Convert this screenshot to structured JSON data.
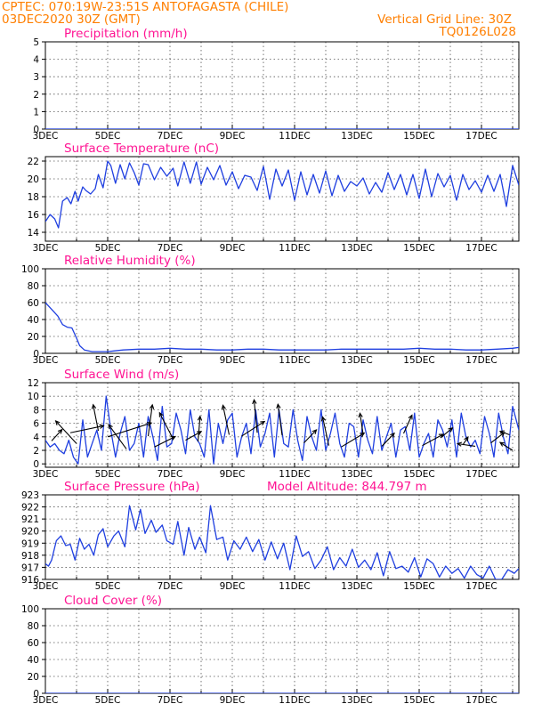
{
  "header": {
    "line1_left": "CPTEC:   070:19W-23:51S   ANTOFAGASTA (CHILE)",
    "line2_left": "03DEC2020 30Z (GMT)",
    "line2_right": "Vertical Grid Line: 30Z",
    "line3_right": "TQ0126L028"
  },
  "colors": {
    "title": "#ff1493",
    "header": "#ff7f00",
    "series": "#1f3fe0",
    "arrow": "#000000"
  },
  "chart_data": [
    {
      "type": "line",
      "title": "Precipitation (mm/h)",
      "ylim": [
        0,
        5
      ],
      "yticks": [
        0,
        1,
        2,
        3,
        4,
        5
      ],
      "xticks": [
        "3DEC",
        "5DEC",
        "7DEC",
        "9DEC",
        "11DEC",
        "13DEC",
        "15DEC",
        "17DEC"
      ],
      "x_range_days": [
        0,
        15.2
      ],
      "grid": true,
      "series": [
        {
          "x": [
            0,
            15.2
          ],
          "y": [
            0,
            0
          ]
        }
      ]
    },
    {
      "type": "line",
      "title": "Surface Temperature (nC)",
      "ylim": [
        13,
        22.5
      ],
      "yticks": [
        14,
        16,
        18,
        20,
        22
      ],
      "xticks": [
        "3DEC",
        "5DEC",
        "7DEC",
        "9DEC",
        "11DEC",
        "13DEC",
        "15DEC",
        "17DEC"
      ],
      "x_range_days": [
        0,
        15.2
      ],
      "grid": true,
      "series": [
        {
          "x": [
            0,
            0.15,
            0.3,
            0.42,
            0.55,
            0.7,
            0.82,
            0.95,
            1.05,
            1.2,
            1.3,
            1.45,
            1.6,
            1.7,
            1.85,
            2,
            2.1,
            2.25,
            2.4,
            2.55,
            2.7,
            2.85,
            3,
            3.15,
            3.3,
            3.5,
            3.7,
            3.9,
            4.1,
            4.25,
            4.45,
            4.65,
            4.85,
            5,
            5.2,
            5.4,
            5.6,
            5.8,
            6,
            6.2,
            6.4,
            6.6,
            6.8,
            7,
            7.2,
            7.4,
            7.6,
            7.8,
            8,
            8.2,
            8.4,
            8.6,
            8.8,
            9,
            9.2,
            9.4,
            9.6,
            9.8,
            10,
            10.2,
            10.4,
            10.6,
            10.8,
            11,
            11.2,
            11.4,
            11.6,
            11.8,
            12,
            12.2,
            12.4,
            12.6,
            12.8,
            13,
            13.2,
            13.4,
            13.6,
            13.8,
            14,
            14.2,
            14.4,
            14.6,
            14.8,
            15,
            15.2
          ],
          "y": [
            15.2,
            16,
            15.5,
            14.5,
            17.5,
            17.9,
            17.2,
            18.6,
            17.5,
            19.1,
            18.7,
            18.3,
            18.9,
            20.5,
            19,
            22,
            21.5,
            19.5,
            21.6,
            20,
            21.8,
            20.7,
            19.3,
            21.7,
            21.6,
            19.9,
            21.3,
            20.3,
            21.2,
            19.2,
            21.9,
            19.5,
            21.9,
            19.4,
            21.3,
            19.9,
            21.5,
            19.3,
            20.8,
            18.9,
            20.4,
            20.2,
            18.7,
            21.4,
            17.7,
            21.1,
            19.2,
            21,
            17.6,
            20.8,
            18.2,
            20.5,
            18.4,
            20.9,
            18.1,
            20.4,
            18.6,
            19.7,
            19.2,
            20.1,
            18.3,
            19.6,
            18.5,
            20.7,
            18.8,
            20.5,
            18.2,
            20.5,
            17.8,
            21.1,
            18,
            20.6,
            19.1,
            20.4,
            17.6,
            20.5,
            18.8,
            19.8,
            18.5,
            20.4,
            18.6,
            20.5,
            16.9,
            21.5,
            19.3
          ]
        }
      ]
    },
    {
      "type": "line",
      "title": "Relative Humidity (%)",
      "ylim": [
        0,
        100
      ],
      "yticks": [
        0,
        20,
        40,
        60,
        80,
        100
      ],
      "xticks": [
        "3DEC",
        "5DEC",
        "7DEC",
        "9DEC",
        "11DEC",
        "13DEC",
        "15DEC",
        "17DEC"
      ],
      "x_range_days": [
        0,
        15.2
      ],
      "grid": true,
      "series": [
        {
          "x": [
            0,
            0.2,
            0.4,
            0.55,
            0.7,
            0.85,
            1,
            1.1,
            1.25,
            1.5,
            2,
            2.5,
            3,
            3.5,
            4,
            4.5,
            5,
            5.5,
            6,
            6.5,
            7,
            7.5,
            8,
            8.5,
            9,
            9.5,
            10,
            10.5,
            11,
            11.5,
            12,
            12.5,
            13,
            13.5,
            14,
            14.5,
            15,
            15.2
          ],
          "y": [
            60,
            52,
            44,
            34,
            31,
            30,
            18,
            9,
            4,
            2,
            2,
            4,
            5,
            5,
            6,
            5,
            5,
            4,
            4,
            5,
            5,
            4,
            4,
            4,
            4,
            5,
            5,
            5,
            5,
            5,
            6,
            5,
            5,
            4,
            4,
            5,
            6,
            7
          ]
        }
      ]
    },
    {
      "type": "line",
      "title": "Surface Wind (m/s)",
      "ylim": [
        -0.5,
        12
      ],
      "yticks": [
        0,
        2,
        4,
        6,
        8,
        10,
        12
      ],
      "xticks": [
        "3DEC",
        "5DEC",
        "7DEC",
        "9DEC",
        "11DEC",
        "13DEC",
        "15DEC",
        "17DEC"
      ],
      "x_range_days": [
        0,
        15.2
      ],
      "grid": true,
      "series": [
        {
          "x": [
            0,
            0.15,
            0.3,
            0.45,
            0.6,
            0.75,
            0.9,
            1.05,
            1.2,
            1.35,
            1.5,
            1.65,
            1.8,
            1.95,
            2.1,
            2.25,
            2.4,
            2.55,
            2.7,
            2.85,
            3,
            3.15,
            3.3,
            3.45,
            3.6,
            3.75,
            3.9,
            4.05,
            4.2,
            4.35,
            4.5,
            4.65,
            4.8,
            4.95,
            5.1,
            5.25,
            5.4,
            5.55,
            5.7,
            5.85,
            6,
            6.15,
            6.3,
            6.45,
            6.6,
            6.75,
            6.9,
            7.05,
            7.2,
            7.35,
            7.5,
            7.65,
            7.8,
            7.95,
            8.1,
            8.25,
            8.4,
            8.55,
            8.7,
            8.85,
            9,
            9.15,
            9.3,
            9.45,
            9.6,
            9.75,
            9.9,
            10.05,
            10.2,
            10.35,
            10.5,
            10.65,
            10.8,
            10.95,
            11.1,
            11.25,
            11.4,
            11.55,
            11.7,
            11.85,
            12,
            12.15,
            12.3,
            12.45,
            12.6,
            12.75,
            12.9,
            13.05,
            13.2,
            13.35,
            13.5,
            13.65,
            13.8,
            13.95,
            14.1,
            14.25,
            14.4,
            14.55,
            14.7,
            14.85,
            15,
            15.2
          ],
          "y": [
            3.5,
            2.5,
            3,
            2,
            1.5,
            3.5,
            1,
            0,
            6.5,
            1,
            3,
            5,
            2,
            10,
            5,
            1,
            4.5,
            7,
            2,
            3,
            6,
            1,
            7,
            4,
            0.5,
            8.5,
            2.5,
            3,
            7.5,
            5,
            1.5,
            8,
            4,
            3,
            1,
            8,
            0,
            6,
            3,
            6.5,
            7.5,
            1,
            4,
            6,
            1.5,
            8,
            2.5,
            4.5,
            7.5,
            1,
            8,
            3,
            2.5,
            8,
            3.5,
            0.5,
            7,
            4,
            2,
            8,
            2,
            4.5,
            7.5,
            3,
            1,
            6,
            5.5,
            1,
            6.5,
            3.5,
            1.5,
            7,
            2,
            4,
            6,
            1,
            5,
            5.5,
            2,
            7.5,
            1,
            3,
            4.5,
            1,
            6.5,
            5,
            2.5,
            6.5,
            1,
            7.5,
            4,
            2.5,
            3.5,
            1.5,
            7,
            4.5,
            1,
            7.5,
            4,
            1.5,
            8.5,
            5
          ]
        }
      ],
      "vectors": [
        {
          "day": 0.2,
          "u": 1.0,
          "v": 1.3
        },
        {
          "day": 1.0,
          "u": -2.0,
          "v": 2.6
        },
        {
          "day": 1.7,
          "u": -0.5,
          "v": 3.0
        },
        {
          "day": 0.8,
          "u": 3.2,
          "v": 0.8
        },
        {
          "day": 2.6,
          "u": -1.7,
          "v": 2.8
        },
        {
          "day": 3.3,
          "u": 0.4,
          "v": 3.6
        },
        {
          "day": 2.0,
          "u": 4.2,
          "v": 1.6
        },
        {
          "day": 4.1,
          "u": -1.3,
          "v": 3.0
        },
        {
          "day": 4.9,
          "u": 0.2,
          "v": 2.9
        },
        {
          "day": 3.5,
          "u": 2.0,
          "v": 1.2
        },
        {
          "day": 5.9,
          "u": -0.6,
          "v": 3.4
        },
        {
          "day": 6.8,
          "u": -0.3,
          "v": 3.8
        },
        {
          "day": 4.5,
          "u": 1.5,
          "v": 1.0
        },
        {
          "day": 7.6,
          "u": -0.4,
          "v": 3.6
        },
        {
          "day": 8.3,
          "u": 1.2,
          "v": 1.5
        },
        {
          "day": 6.3,
          "u": 2.2,
          "v": 1.7
        },
        {
          "day": 9.1,
          "u": -0.6,
          "v": 3.3
        },
        {
          "day": 10.2,
          "u": -0.3,
          "v": 2.4
        },
        {
          "day": 9.5,
          "u": 2.2,
          "v": 1.6
        },
        {
          "day": 10.8,
          "u": 1.2,
          "v": 1.5
        },
        {
          "day": 11.5,
          "u": 0.8,
          "v": 2.1
        },
        {
          "day": 12.1,
          "u": 2.0,
          "v": 1.3
        },
        {
          "day": 12.7,
          "u": 1.1,
          "v": 1.1
        },
        {
          "day": 13.4,
          "u": 0.5,
          "v": 0.9
        },
        {
          "day": 13.8,
          "u": -1.7,
          "v": 0.3
        },
        {
          "day": 14.3,
          "u": 1.3,
          "v": 1.2
        },
        {
          "day": 14.9,
          "u": -0.9,
          "v": 0.4
        },
        {
          "day": 15.0,
          "u": -1.2,
          "v": 0.9
        }
      ]
    },
    {
      "type": "line",
      "title": "Surface Pressure (hPa)",
      "subtitle": "Model Altitude: 844.797  m",
      "ylim": [
        916,
        923
      ],
      "yticks": [
        916,
        917,
        918,
        919,
        920,
        921,
        922,
        923
      ],
      "xticks": [
        "3DEC",
        "5DEC",
        "7DEC",
        "9DEC",
        "11DEC",
        "13DEC",
        "15DEC",
        "17DEC"
      ],
      "x_range_days": [
        0,
        15.2
      ],
      "grid": true,
      "series": [
        {
          "x": [
            0,
            0.1,
            0.2,
            0.35,
            0.5,
            0.65,
            0.8,
            0.95,
            1.1,
            1.25,
            1.4,
            1.55,
            1.7,
            1.85,
            2,
            2.2,
            2.35,
            2.55,
            2.7,
            2.9,
            3.05,
            3.2,
            3.4,
            3.55,
            3.75,
            3.9,
            4.1,
            4.25,
            4.45,
            4.6,
            4.8,
            4.95,
            5.15,
            5.3,
            5.5,
            5.7,
            5.85,
            6.05,
            6.25,
            6.45,
            6.65,
            6.85,
            7.05,
            7.25,
            7.45,
            7.65,
            7.85,
            8.05,
            8.25,
            8.45,
            8.65,
            8.85,
            9.05,
            9.25,
            9.45,
            9.65,
            9.85,
            10.05,
            10.25,
            10.45,
            10.65,
            10.85,
            11.05,
            11.25,
            11.45,
            11.65,
            11.85,
            12.05,
            12.25,
            12.45,
            12.65,
            12.85,
            13.05,
            13.25,
            13.45,
            13.65,
            13.85,
            14.05,
            14.25,
            14.45,
            14.65,
            14.85,
            15.05,
            15.2
          ],
          "y": [
            917.3,
            917.1,
            917.6,
            919.2,
            919.6,
            918.8,
            918.9,
            917.6,
            919.4,
            918.5,
            918.9,
            918,
            919.7,
            920.2,
            918.7,
            919.6,
            920,
            918.7,
            922.1,
            920.1,
            921.8,
            919.8,
            920.9,
            919.9,
            920.5,
            919.2,
            918.9,
            920.8,
            918,
            920.3,
            918.5,
            919.5,
            918.2,
            922.1,
            919.3,
            919.5,
            917.6,
            919.2,
            918.5,
            919.5,
            918.3,
            919.3,
            917.6,
            919.1,
            917.7,
            919,
            916.8,
            919.6,
            917.9,
            918.3,
            916.9,
            917.6,
            918.7,
            916.8,
            917.8,
            917.1,
            918.5,
            917,
            917.6,
            916.8,
            918.2,
            916.3,
            918.3,
            916.9,
            917.1,
            916.6,
            917.8,
            916.2,
            917.7,
            917.3,
            916.2,
            917.1,
            916.5,
            916.9,
            916.1,
            917.1,
            916.4,
            916.1,
            917.1,
            916,
            916,
            916.8,
            916.5,
            916.9
          ]
        }
      ]
    },
    {
      "type": "line",
      "title": "Cloud Cover (%)",
      "ylim": [
        0,
        100
      ],
      "yticks": [
        0,
        20,
        40,
        60,
        80,
        100
      ],
      "xticks": [
        "3DEC",
        "5DEC",
        "7DEC",
        "9DEC",
        "11DEC",
        "13DEC",
        "15DEC",
        "17DEC"
      ],
      "x_range_days": [
        0,
        15.2
      ],
      "grid": true,
      "series": [
        {
          "x": [
            0,
            15.2
          ],
          "y": [
            0,
            0
          ]
        }
      ]
    }
  ]
}
